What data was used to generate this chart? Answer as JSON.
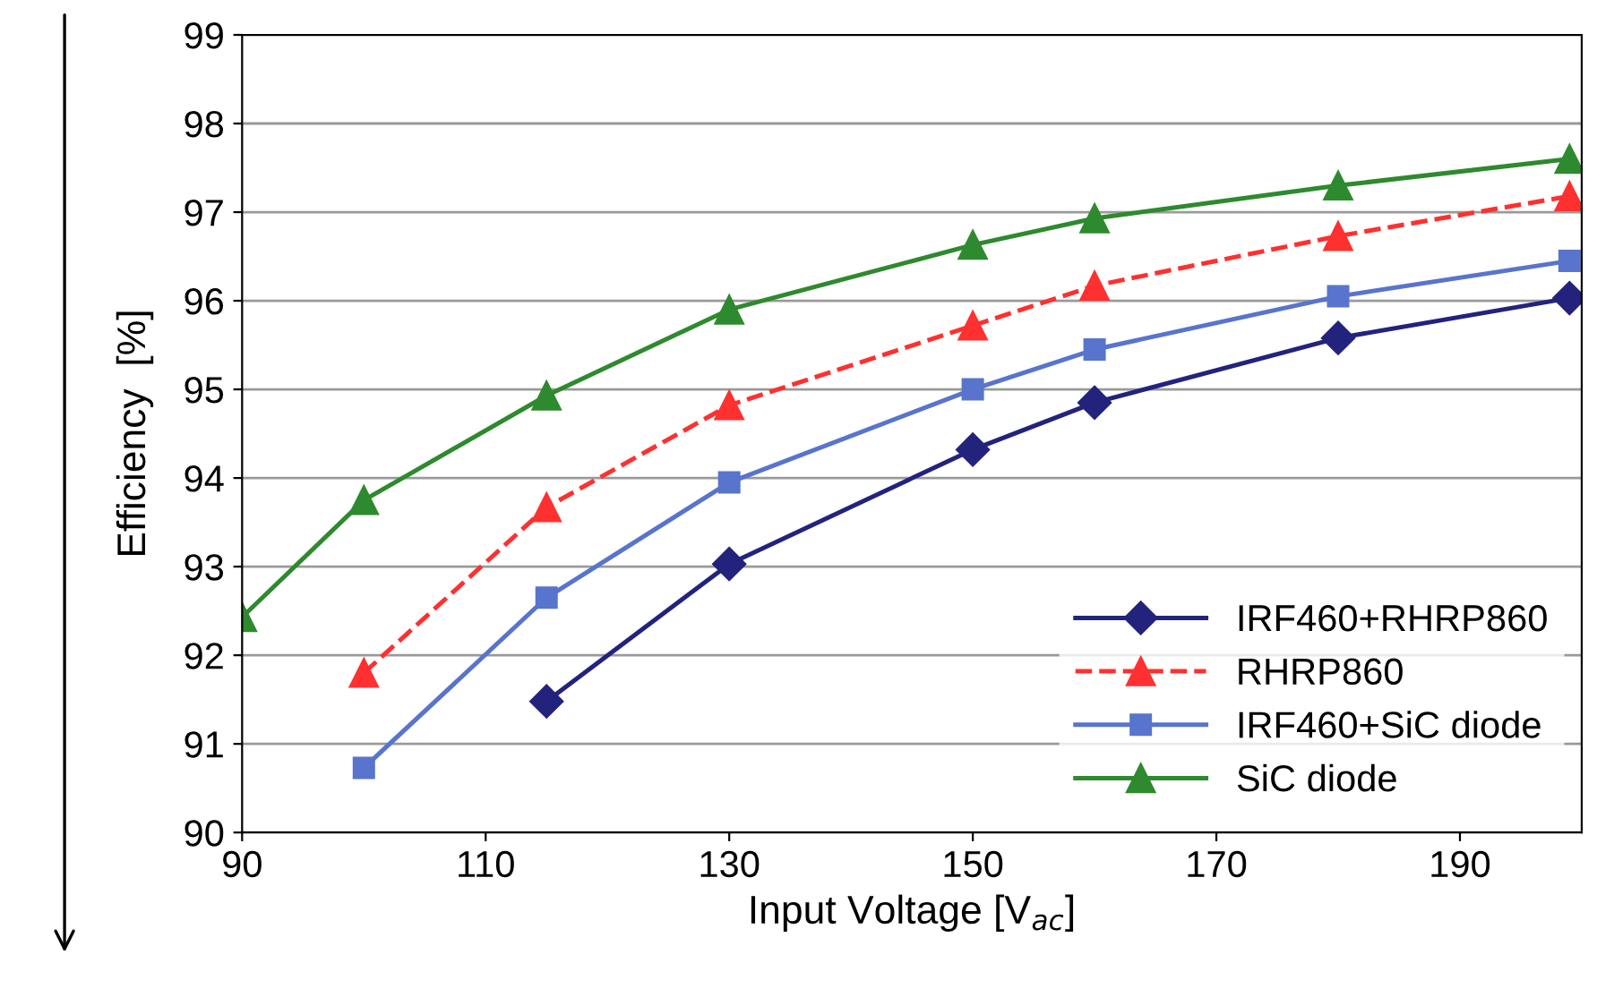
{
  "chart_data": {
    "type": "line",
    "xlabel": "Input Voltage [V$_{ac}$]",
    "ylabel": "Efficiency  [%]",
    "xlim": [
      90,
      200
    ],
    "xticks": [
      90,
      110,
      130,
      150,
      170,
      190
    ],
    "ylim": [
      90,
      99
    ],
    "yticks": [
      90,
      91,
      92,
      93,
      94,
      95,
      96,
      97,
      98,
      99
    ],
    "grid": "y",
    "legend": "bottom right",
    "series": [
      {
        "name": "IRF460+RHRP860",
        "color": "#23237e",
        "marker": "diamond",
        "line_style": "solid",
        "x": [
          115,
          130,
          150,
          160,
          180,
          199
        ],
        "values": [
          91.48,
          93.03,
          94.32,
          94.85,
          95.58,
          96.03
        ]
      },
      {
        "name": "RHRP860",
        "color": "#ff3030",
        "marker": "triangle",
        "line_style": "dashed",
        "x": [
          100,
          115,
          130,
          150,
          160,
          180,
          199
        ],
        "values": [
          91.8,
          93.67,
          94.82,
          95.72,
          96.17,
          96.73,
          97.18
        ]
      },
      {
        "name": "IRF460+SiC diode",
        "color": "#5874cc",
        "marker": "square",
        "line_style": "solid",
        "x": [
          100,
          115,
          130,
          150,
          160,
          180,
          199
        ],
        "values": [
          90.73,
          92.65,
          93.95,
          95.0,
          95.45,
          96.05,
          96.45
        ]
      },
      {
        "name": "SiC diode",
        "color": "#2e8a2e",
        "marker": "triangle",
        "line_style": "solid",
        "x": [
          90,
          100,
          115,
          130,
          150,
          160,
          180,
          199
        ],
        "values": [
          92.43,
          93.75,
          94.93,
          95.9,
          96.63,
          96.93,
          97.3,
          97.6
        ]
      }
    ]
  }
}
